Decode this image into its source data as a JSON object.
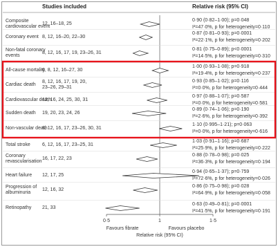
{
  "headers": {
    "studies": "Studies included",
    "rr": "Relative risk (95% CI)"
  },
  "rows": [
    {
      "outcome": [
        "Composite",
        "cardiovascular event"
      ],
      "studies": [
        "12, 16–18, 25"
      ],
      "stat1": "0·90 (0·82–1·00); p=0·048",
      "stat2": "I²=47·0%, p for heterogeneity=0·110",
      "rr": 0.9,
      "lo": 0.82,
      "hi": 1.0
    },
    {
      "outcome": [
        "Coronary event"
      ],
      "studies": [
        "8, 12, 16–20, 22–30"
      ],
      "stat1": "0·87 (0·81–0·93); p=0·0001",
      "stat2": "I²=22·1%, p for heterogeneity=0·202",
      "rr": 0.87,
      "lo": 0.81,
      "hi": 0.93
    },
    {
      "outcome": [
        "Non-fatal coronary",
        "events"
      ],
      "studies": [
        "8, 12, 16, 17, 19, 23–26, 31"
      ],
      "stat1": "0·81 (0·75–0·89); p<0·0001",
      "stat2": "I²=14·5%, p for heterogeneity=0·310",
      "rr": 0.81,
      "lo": 0.75,
      "hi": 0.89
    },
    {
      "outcome": [
        "All-cause mortality"
      ],
      "studies": [
        "6, 8, 12, 16–27, 30"
      ],
      "stat1": "1·00 (0·93–1·08); p=0·918",
      "stat2": "I²=19·4%, p for heterogeneity=0·237",
      "rr": 1.0,
      "lo": 0.93,
      "hi": 1.08
    },
    {
      "outcome": [
        "Cardiac death"
      ],
      "studies": [
        "8, 12, 16, 17, 19, 20,",
        "23–26, 29–31"
      ],
      "stat1": "0·93 (0·85–1·02); p=0·116",
      "stat2": "I²=0·0%, p for heterogeneity=0·444",
      "rr": 0.93,
      "lo": 0.85,
      "hi": 1.02
    },
    {
      "outcome": [
        "Cardiovascular death"
      ],
      "studies": [
        "12, 16, 24, 25, 30, 31"
      ],
      "stat1": "0·97 (0·88–1·07); p=0·587",
      "stat2": "I²=0·0%, p for heterogeneity=0·581",
      "rr": 0.97,
      "lo": 0.88,
      "hi": 1.07
    },
    {
      "outcome": [
        "Sudden death"
      ],
      "studies": [
        "19, 20, 23, 24, 26"
      ],
      "stat1": "0·89 (0·74–1·06); p=0·190",
      "stat2": "I²=2·6%, p for heterogeneity=0·392",
      "rr": 0.89,
      "lo": 0.74,
      "hi": 1.06
    },
    {
      "outcome": [
        "Non-vascular death"
      ],
      "studies": [
        "8, 12, 16, 17, 23–26, 30, 31"
      ],
      "stat1": "1·10 (0·995–1·21); p=0·063",
      "stat2": "I²=0·0%, p for heterogeneity=0·616",
      "rr": 1.1,
      "lo": 0.995,
      "hi": 1.21
    },
    {
      "outcome": [
        "Total stroke"
      ],
      "studies": [
        "6, 12, 16, 17, 23–25, 31"
      ],
      "stat1": "1·03 (0·91–1·16); p=0·687",
      "stat2": "I²=25·9%, p for heterogeneity=0·222",
      "rr": 1.03,
      "lo": 0.91,
      "hi": 1.16
    },
    {
      "outcome": [
        "Coronary",
        "revascularisation"
      ],
      "studies": [
        "16, 17, 22, 23"
      ],
      "stat1": "0·88 (0·78–0·98); p=0·025",
      "stat2": "I²=36·3%, p for heterogeneity=0·194",
      "rr": 0.88,
      "lo": 0.78,
      "hi": 0.98
    },
    {
      "outcome": [
        "Heart failure"
      ],
      "studies": [
        "12, 17, 25"
      ],
      "stat1": "0·94 (0·65–1·37); p=0·759",
      "stat2": "I²=72·6%, p for heterogeneity=0·026",
      "rr": 0.94,
      "lo": 0.65,
      "hi": 1.37
    },
    {
      "outcome": [
        "Progression of",
        "albuminuria"
      ],
      "studies": [
        "12, 16, 32"
      ],
      "stat1": "0·86 (0·75–0·98); p=0·028",
      "stat2": "I²=64·9%, p for heterogeneity=0·058",
      "rr": 0.86,
      "lo": 0.75,
      "hi": 0.98
    },
    {
      "outcome": [
        "Retinopathy"
      ],
      "studies": [
        "21, 33"
      ],
      "stat1": "0·63 (0·49–0·81); p=0·0001",
      "stat2": "I²=41·5%, p for heterogeneity=0·191",
      "rr": 0.63,
      "lo": 0.49,
      "hi": 0.81
    }
  ],
  "axis": {
    "ticks": [
      0.5,
      1,
      1.5
    ],
    "tick_labels": [
      "0·5",
      "1",
      "1·5"
    ],
    "left_label": "Favours fibrate",
    "right_label": "Favours placebo",
    "xlabel": "Relative risk (95% CI)",
    "range": [
      0.5,
      1.5
    ]
  },
  "highlight": {
    "from_row": 3,
    "to_row": 7,
    "color": "#e8141c"
  },
  "colors": {
    "frame": "#999999",
    "divider": "#d9d9d9",
    "diamond": "#333333"
  }
}
